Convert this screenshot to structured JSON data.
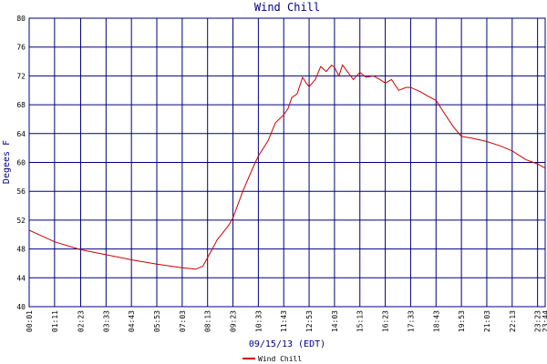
{
  "chart_data": {
    "type": "line",
    "title": "Wind Chill",
    "x_label": "09/15/13 (EDT)",
    "y_label": "Degees F",
    "x": [
      "00:01",
      "01:11",
      "02:23",
      "03:33",
      "04:43",
      "05:53",
      "07:03",
      "07:40",
      "08:00",
      "08:13",
      "08:40",
      "09:10",
      "09:23",
      "09:50",
      "10:20",
      "10:33",
      "11:00",
      "11:20",
      "11:43",
      "11:55",
      "12:05",
      "12:20",
      "12:35",
      "12:45",
      "12:53",
      "13:10",
      "13:25",
      "13:40",
      "13:55",
      "14:03",
      "14:15",
      "14:25",
      "14:40",
      "14:55",
      "15:13",
      "15:30",
      "15:50",
      "16:05",
      "16:23",
      "16:40",
      "17:00",
      "17:20",
      "17:33",
      "18:00",
      "18:20",
      "18:43",
      "19:10",
      "19:30",
      "19:53",
      "20:20",
      "21:03",
      "21:40",
      "22:13",
      "22:50",
      "23:23",
      "23:44"
    ],
    "series": [
      {
        "name": "Wind Chill",
        "color": "#cc0000",
        "values": [
          50.6,
          49.0,
          47.9,
          47.2,
          46.5,
          45.9,
          45.4,
          45.2,
          45.6,
          46.8,
          49.3,
          51.2,
          52.3,
          56,
          59.5,
          60.9,
          63,
          65.5,
          66.6,
          67.5,
          69,
          69.5,
          71.8,
          71,
          70.5,
          71.5,
          73.3,
          72.6,
          73.5,
          73.2,
          72,
          73.5,
          72.5,
          71.5,
          72.5,
          71.8,
          72,
          71.6,
          71.0,
          71.5,
          70,
          70.4,
          70.4,
          69.8,
          69.2,
          68.6,
          66.5,
          65,
          63.6,
          63.4,
          62.9,
          62.3,
          61.6,
          60.4,
          59.8,
          59.2
        ]
      }
    ],
    "xlim": [
      "00:01",
      "23:44"
    ],
    "xticks": [
      "00:01",
      "01:11",
      "02:23",
      "03:33",
      "04:43",
      "05:53",
      "07:03",
      "08:13",
      "09:23",
      "10:33",
      "11:43",
      "12:53",
      "14:03",
      "15:13",
      "16:23",
      "17:33",
      "18:43",
      "19:53",
      "21:03",
      "22:13",
      "23:23",
      "23:44"
    ],
    "ylim": [
      40,
      80
    ],
    "yticks": [
      40,
      44,
      48,
      52,
      56,
      60,
      64,
      68,
      72,
      76,
      80
    ],
    "grid": true,
    "grid_color": "#000080",
    "legend": "bottom"
  }
}
